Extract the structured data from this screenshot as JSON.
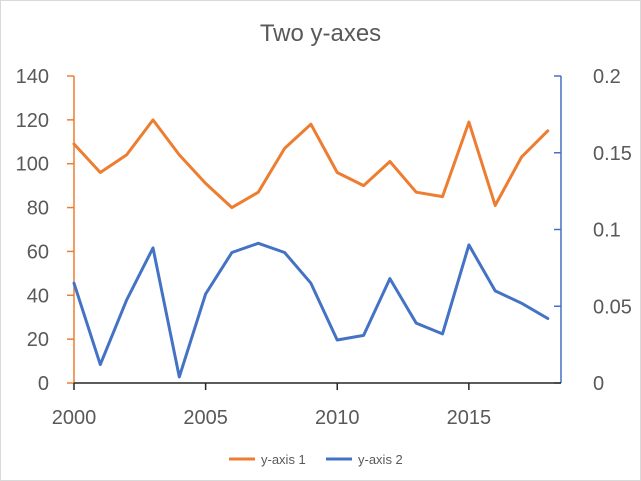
{
  "chart_data": {
    "type": "line",
    "title": "Two y-axes",
    "x_axis": {
      "range": [
        2000,
        2018.5
      ],
      "ticks": [
        "2000",
        "2005",
        "2010",
        "2015"
      ],
      "tick_values": [
        2000,
        2005,
        2010,
        2015
      ]
    },
    "y_axis_left": {
      "range": [
        0,
        140
      ],
      "ticks": [
        "0",
        "20",
        "40",
        "60",
        "80",
        "100",
        "120",
        "140"
      ],
      "tick_values": [
        0,
        20,
        40,
        60,
        80,
        100,
        120,
        140
      ]
    },
    "y_axis_right": {
      "range": [
        0,
        0.2
      ],
      "ticks": [
        "0",
        "0.05",
        "0.1",
        "0.15",
        "0.2"
      ],
      "tick_values": [
        0,
        0.05,
        0.1,
        0.15,
        0.2
      ]
    },
    "x": [
      2000,
      2001,
      2002,
      2003,
      2004,
      2005,
      2006,
      2007,
      2008,
      2009,
      2010,
      2011,
      2012,
      2013,
      2014,
      2015,
      2016,
      2017,
      2018
    ],
    "series": [
      {
        "name": "y-axis 1",
        "axis": "left",
        "color": "#ed7d31",
        "values": [
          109,
          96,
          104,
          120,
          104,
          91,
          80,
          87,
          107,
          118,
          96,
          90,
          101,
          87,
          85,
          119,
          81,
          103,
          115
        ]
      },
      {
        "name": "y-axis 2",
        "axis": "right",
        "color": "#4472c4",
        "values": [
          0.065,
          0.012,
          0.054,
          0.088,
          0.004,
          0.058,
          0.085,
          0.091,
          0.085,
          0.065,
          0.028,
          0.031,
          0.068,
          0.039,
          0.032,
          0.09,
          0.06,
          0.052,
          0.042
        ]
      }
    ],
    "grid": false,
    "legend_position": "bottom"
  }
}
